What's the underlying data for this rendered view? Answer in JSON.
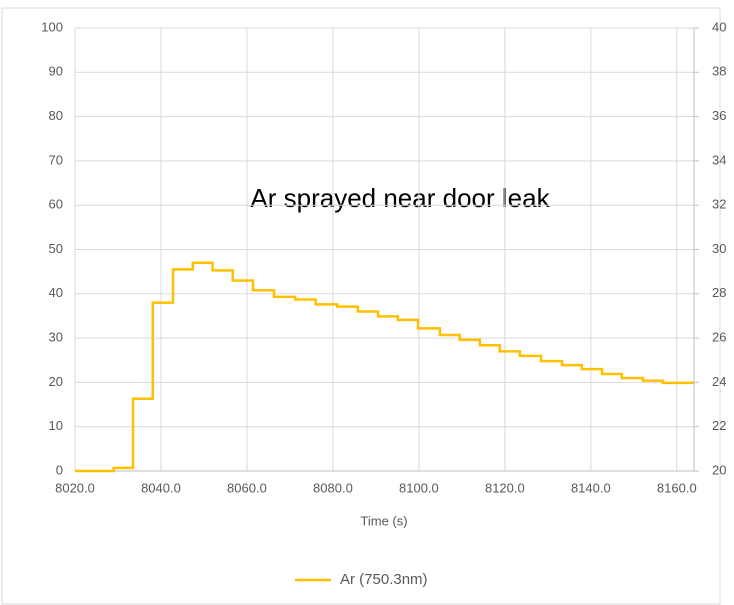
{
  "chart_data": {
    "type": "line",
    "step": "post",
    "annotation": "Ar sprayed near door leak",
    "x_label": "Time (s)",
    "xlim": [
      8020,
      8164
    ],
    "xticks": [
      {
        "value": 8020,
        "label": "8020.0"
      },
      {
        "value": 8040,
        "label": "8040.0"
      },
      {
        "value": 8060,
        "label": "8060.0"
      },
      {
        "value": 8080,
        "label": "8080.0"
      },
      {
        "value": 8100,
        "label": "8100.0"
      },
      {
        "value": 8120,
        "label": "8120.0"
      },
      {
        "value": 8140,
        "label": "8140.0"
      },
      {
        "value": 8160,
        "label": "8160.0"
      }
    ],
    "ylim": [
      0,
      100
    ],
    "yticks": [
      0,
      10,
      20,
      30,
      40,
      50,
      60,
      70,
      80,
      90,
      100
    ],
    "y2lim": [
      20,
      40
    ],
    "y2ticks": [
      20,
      22,
      24,
      26,
      28,
      30,
      32,
      34,
      36,
      38,
      40
    ],
    "grid": true,
    "legend": "bottom",
    "x": [
      8020,
      8029,
      8033.5,
      8038.1,
      8042.8,
      8047.4,
      8052,
      8056.7,
      8061.4,
      8066.3,
      8071.2,
      8076,
      8081,
      8085.8,
      8090.5,
      8095.1,
      8099.8,
      8104.9,
      8109.5,
      8114.2,
      8118.8,
      8123.5,
      8128.4,
      8133.3,
      8137.9,
      8142.6,
      8147.2,
      8152.1,
      8156.7,
      8164
    ],
    "series": [
      {
        "name": "Ar (750.3nm)",
        "color": "#ffc000",
        "values": [
          0,
          0.7,
          16.3,
          38,
          45.5,
          47,
          45.3,
          43,
          40.8,
          39.3,
          38.7,
          37.6,
          37.1,
          36,
          34.9,
          34.1,
          32.2,
          30.7,
          29.6,
          28.4,
          27,
          26,
          24.8,
          23.9,
          23,
          21.9,
          21,
          20.4,
          19.9,
          19.9
        ]
      }
    ]
  }
}
